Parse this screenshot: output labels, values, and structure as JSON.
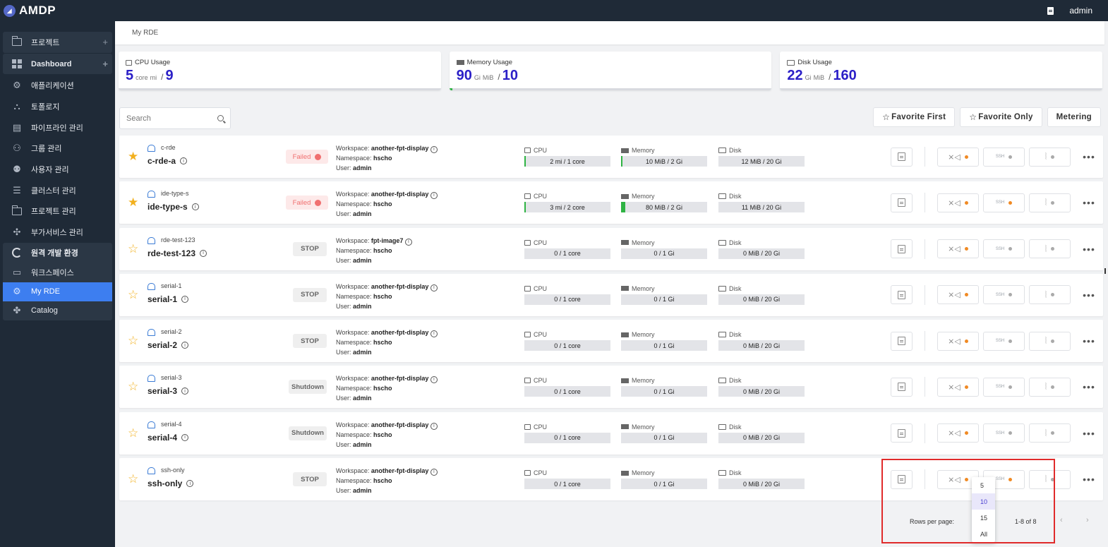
{
  "app": {
    "title": "AMDP",
    "user": "admin"
  },
  "sidebar": {
    "groups": [
      {
        "label": "프로젝트",
        "icon": "folder-icon",
        "plus": "+"
      },
      {
        "label": "Dashboard",
        "icon": "dashboard-icon",
        "plus": "+"
      }
    ],
    "items": [
      {
        "label": "애플리케이션",
        "icon": "gear-icon"
      },
      {
        "label": "토폴로지",
        "icon": "topology-icon"
      },
      {
        "label": "파이프라인 관리",
        "icon": "pipeline-icon"
      },
      {
        "label": "그룹 관리",
        "icon": "group-icon"
      },
      {
        "label": "사용자 관리",
        "icon": "user-gear-icon"
      },
      {
        "label": "클러스터 관리",
        "icon": "server-icon"
      },
      {
        "label": "프로젝트 관리",
        "icon": "folder-icon"
      },
      {
        "label": "부가서비스 관리",
        "icon": "puzzle-icon"
      }
    ],
    "rde_group": {
      "label": "원격 개발 환경",
      "children": [
        {
          "label": "워크스페이스",
          "icon": "monitor-icon"
        },
        {
          "label": "My RDE",
          "icon": "gear-icon",
          "active": true
        },
        {
          "label": "Catalog",
          "icon": "puzzle-icon"
        }
      ]
    }
  },
  "breadcrumb": "My RDE",
  "usage": {
    "cpu": {
      "label": "CPU Usage",
      "used": "5",
      "unit1": "core",
      "unit2": "mi",
      "sep": "/",
      "total": "9",
      "fraction": 0.0
    },
    "memory": {
      "label": "Memory Usage",
      "used": "90",
      "unit1": "Gi",
      "unit2": "MiB",
      "sep": "/",
      "total": "10",
      "fraction": 0.01
    },
    "disk": {
      "label": "Disk Usage",
      "used": "22",
      "unit1": "Gi",
      "unit2": "MiB",
      "sep": "/",
      "total": "160",
      "fraction": 0.0
    }
  },
  "search": {
    "placeholder": "Search"
  },
  "buttons": {
    "favorite_first": "Favorite First",
    "favorite_only": "Favorite Only",
    "metering": "Metering"
  },
  "labels": {
    "workspace": "Workspace:",
    "namespace": "Namespace:",
    "user": "User:",
    "cpu": "CPU",
    "memory": "Memory",
    "disk": "Disk",
    "ssh": "SSH",
    "more": "•••",
    "info": "i"
  },
  "rdes": [
    {
      "small": "c-rde",
      "name": "c-rde-a",
      "favorite": true,
      "status": "Failed",
      "status_type": "failed",
      "workspace": "another-fpt-display",
      "namespace": "hscho",
      "user": "admin",
      "cpu": "2 mi / 1 core",
      "cpu_frac": 0.01,
      "memory": "10 MiB / 2 Gi",
      "mem_frac": 0.01,
      "disk": "12 MiB / 20 Gi",
      "disk_frac": 0.0,
      "ssh_active": false
    },
    {
      "small": "ide-type-s",
      "name": "ide-type-s",
      "favorite": true,
      "status": "Failed",
      "status_type": "failed",
      "workspace": "another-fpt-display",
      "namespace": "hscho",
      "user": "admin",
      "cpu": "3 mi / 2 core",
      "cpu_frac": 0.01,
      "memory": "80 MiB / 2 Gi",
      "mem_frac": 0.04,
      "disk": "11 MiB / 20 Gi",
      "disk_frac": 0.0,
      "ssh_active": true
    },
    {
      "small": "rde-test-123",
      "name": "rde-test-123",
      "favorite": false,
      "status": "STOP",
      "status_type": "stop",
      "workspace": "fpt-image7",
      "namespace": "hscho",
      "user": "admin",
      "cpu": "0 / 1 core",
      "cpu_frac": 0,
      "memory": "0 / 1 Gi",
      "mem_frac": 0,
      "disk": "0 MiB / 20 Gi",
      "disk_frac": 0,
      "ssh_active": false
    },
    {
      "small": "serial-1",
      "name": "serial-1",
      "favorite": false,
      "status": "STOP",
      "status_type": "stop",
      "workspace": "another-fpt-display",
      "namespace": "hscho",
      "user": "admin",
      "cpu": "0 / 1 core",
      "cpu_frac": 0,
      "memory": "0 / 1 Gi",
      "mem_frac": 0,
      "disk": "0 MiB / 20 Gi",
      "disk_frac": 0,
      "ssh_active": false
    },
    {
      "small": "serial-2",
      "name": "serial-2",
      "favorite": false,
      "status": "STOP",
      "status_type": "stop",
      "workspace": "another-fpt-display",
      "namespace": "hscho",
      "user": "admin",
      "cpu": "0 / 1 core",
      "cpu_frac": 0,
      "memory": "0 / 1 Gi",
      "mem_frac": 0,
      "disk": "0 MiB / 20 Gi",
      "disk_frac": 0,
      "ssh_active": false
    },
    {
      "small": "serial-3",
      "name": "serial-3",
      "favorite": false,
      "status": "Shutdown",
      "status_type": "shutdown",
      "workspace": "another-fpt-display",
      "namespace": "hscho",
      "user": "admin",
      "cpu": "0 / 1 core",
      "cpu_frac": 0,
      "memory": "0 / 1 Gi",
      "mem_frac": 0,
      "disk": "0 MiB / 20 Gi",
      "disk_frac": 0,
      "ssh_active": false
    },
    {
      "small": "serial-4",
      "name": "serial-4",
      "favorite": false,
      "status": "Shutdown",
      "status_type": "shutdown",
      "workspace": "another-fpt-display",
      "namespace": "hscho",
      "user": "admin",
      "cpu": "0 / 1 core",
      "cpu_frac": 0,
      "memory": "0 / 1 Gi",
      "mem_frac": 0,
      "disk": "0 MiB / 20 Gi",
      "disk_frac": 0,
      "ssh_active": false
    },
    {
      "small": "ssh-only",
      "name": "ssh-only",
      "favorite": false,
      "status": "STOP",
      "status_type": "stop",
      "workspace": "another-fpt-display",
      "namespace": "hscho",
      "user": "admin",
      "cpu": "0 / 1 core",
      "cpu_frac": 0,
      "memory": "0 / 1 Gi",
      "mem_frac": 0,
      "disk": "0 MiB / 20 Gi",
      "disk_frac": 0,
      "ssh_active": true
    }
  ],
  "pagination": {
    "rows_per_page_label": "Rows per page:",
    "range": "1-8 of 8",
    "options": [
      "5",
      "10",
      "15",
      "All"
    ],
    "selected": "10",
    "prev": "‹",
    "next": "›"
  },
  "colors": {
    "accent": "#3d7ef0",
    "sidebar": "#1f2a37",
    "usage_value": "#2b1fc7",
    "success": "#2fb344",
    "danger": "#f07070",
    "highlight": "#e02b2b"
  }
}
